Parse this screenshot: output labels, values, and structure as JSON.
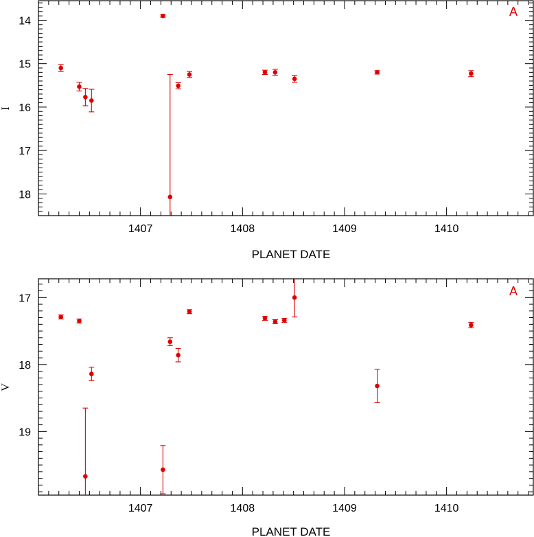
{
  "chart_data": [
    {
      "type": "scatter",
      "panel_tag": "A",
      "xlabel": "PLANET DATE",
      "ylabel": "I",
      "xlim": [
        1406.0,
        1410.85
      ],
      "ylim": [
        13.55,
        18.5
      ],
      "y_inverted": true,
      "x_ticks": [
        1407,
        1408,
        1409,
        1410
      ],
      "y_ticks": [
        14,
        15,
        16,
        17,
        18
      ],
      "color": "#e00000",
      "points": [
        {
          "x": 1406.22,
          "y": 15.1,
          "err": 0.08
        },
        {
          "x": 1406.4,
          "y": 15.53,
          "err": 0.1
        },
        {
          "x": 1406.46,
          "y": 15.77,
          "err": 0.2
        },
        {
          "x": 1406.52,
          "y": 15.85,
          "err": 0.26
        },
        {
          "x": 1407.22,
          "y": 13.9,
          "err": 0.03
        },
        {
          "x": 1407.29,
          "y": 18.07,
          "err": 2.82
        },
        {
          "x": 1407.37,
          "y": 15.51,
          "err": 0.07
        },
        {
          "x": 1407.48,
          "y": 15.25,
          "err": 0.07
        },
        {
          "x": 1408.22,
          "y": 15.2,
          "err": 0.05
        },
        {
          "x": 1408.32,
          "y": 15.2,
          "err": 0.07
        },
        {
          "x": 1408.51,
          "y": 15.35,
          "err": 0.08
        },
        {
          "x": 1409.32,
          "y": 15.2,
          "err": 0.04
        },
        {
          "x": 1410.24,
          "y": 15.23,
          "err": 0.07
        }
      ]
    },
    {
      "type": "scatter",
      "panel_tag": "A",
      "xlabel": "PLANET DATE",
      "ylabel": "V",
      "xlim": [
        1406.0,
        1410.85
      ],
      "ylim": [
        16.72,
        19.95
      ],
      "y_inverted": true,
      "x_ticks": [
        1407,
        1408,
        1409,
        1410
      ],
      "y_ticks": [
        17,
        18,
        19
      ],
      "color": "#e00000",
      "points": [
        {
          "x": 1406.22,
          "y": 17.29,
          "err": 0.03
        },
        {
          "x": 1406.4,
          "y": 17.35,
          "err": 0.03
        },
        {
          "x": 1406.46,
          "y": 19.67,
          "err": 1.02
        },
        {
          "x": 1406.52,
          "y": 18.14,
          "err": 0.1
        },
        {
          "x": 1407.22,
          "y": 19.57,
          "err": 0.36
        },
        {
          "x": 1407.29,
          "y": 17.66,
          "err": 0.06
        },
        {
          "x": 1407.37,
          "y": 17.86,
          "err": 0.1
        },
        {
          "x": 1407.48,
          "y": 17.21,
          "err": 0.03
        },
        {
          "x": 1408.22,
          "y": 17.31,
          "err": 0.03
        },
        {
          "x": 1408.32,
          "y": 17.36,
          "err": 0.03
        },
        {
          "x": 1408.41,
          "y": 17.34,
          "err": 0.03
        },
        {
          "x": 1408.51,
          "y": 17.0,
          "err": 0.29
        },
        {
          "x": 1409.32,
          "y": 18.32,
          "err": 0.25
        },
        {
          "x": 1410.24,
          "y": 17.41,
          "err": 0.04
        }
      ]
    }
  ]
}
